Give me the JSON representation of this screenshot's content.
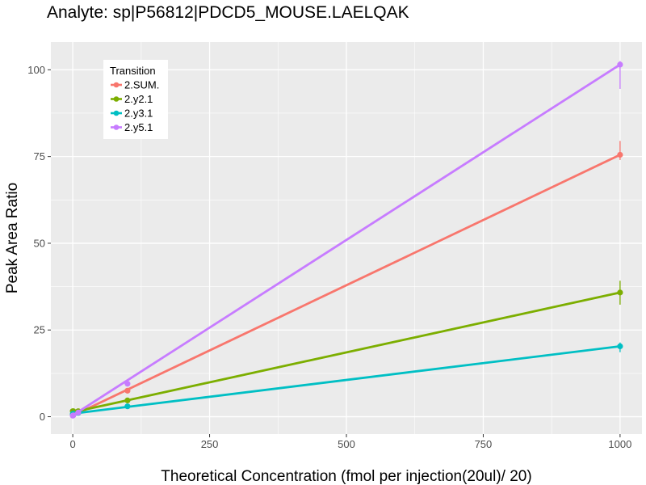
{
  "chart_data": {
    "type": "line",
    "title": "Analyte: sp|P56812|PDCD5_MOUSE.LAELQAK",
    "xlabel": "Theoretical Concentration (fmol per injection(20ul)/ 20)",
    "ylabel": "Peak Area Ratio",
    "xlim": [
      -40,
      1040
    ],
    "ylim": [
      -5,
      108
    ],
    "x_ticks": [
      0,
      250,
      500,
      750,
      1000
    ],
    "x_tick_labels": [
      "0",
      "250",
      "500",
      "750",
      "1000"
    ],
    "y_ticks": [
      0,
      25,
      50,
      75,
      100
    ],
    "y_tick_labels": [
      "0",
      "25",
      "50",
      "75",
      "100"
    ],
    "grid": true,
    "background": "#ebebeb",
    "legend": {
      "title": "Transition",
      "placement": "top-left"
    },
    "series": [
      {
        "name": "2.SUM.",
        "color": "#f8766d",
        "points": [
          {
            "x": 0,
            "y": 0.4
          },
          {
            "x": 1,
            "y": 0.5
          },
          {
            "x": 10,
            "y": 1.2
          },
          {
            "x": 100,
            "y": 7.5
          },
          {
            "x": 1000,
            "y": 75.5
          }
        ],
        "fit": [
          [
            0,
            0.3
          ],
          [
            1000,
            75.5
          ]
        ],
        "error_bars": [
          {
            "x": 1000,
            "low": 74.0,
            "high": 79.5
          }
        ]
      },
      {
        "name": "2.y2.1",
        "color": "#7cae00",
        "points": [
          {
            "x": 0,
            "y": 1.6
          },
          {
            "x": 1,
            "y": 1.6
          },
          {
            "x": 10,
            "y": 1.6
          },
          {
            "x": 100,
            "y": 4.7
          },
          {
            "x": 1000,
            "y": 35.8
          }
        ],
        "fit": [
          [
            0,
            1.3
          ],
          [
            1000,
            35.8
          ]
        ],
        "error_bars": [
          {
            "x": 1000,
            "low": 32.3,
            "high": 39.2
          }
        ]
      },
      {
        "name": "2.y3.1",
        "color": "#00bfc4",
        "points": [
          {
            "x": 0,
            "y": 0.8
          },
          {
            "x": 1,
            "y": 0.9
          },
          {
            "x": 10,
            "y": 1.1
          },
          {
            "x": 100,
            "y": 3.0
          },
          {
            "x": 1000,
            "y": 20.3
          }
        ],
        "fit": [
          [
            0,
            0.9
          ],
          [
            1000,
            20.3
          ]
        ],
        "error_bars": [
          {
            "x": 1000,
            "low": 18.6,
            "high": 21.4
          }
        ]
      },
      {
        "name": "2.y5.1",
        "color": "#c77cff",
        "points": [
          {
            "x": 0,
            "y": 0.3
          },
          {
            "x": 1,
            "y": 0.4
          },
          {
            "x": 10,
            "y": 1.2
          },
          {
            "x": 100,
            "y": 9.5
          },
          {
            "x": 1000,
            "y": 101.5
          }
        ],
        "fit": [
          [
            0,
            0.4
          ],
          [
            1000,
            101.5
          ]
        ],
        "error_bars": [
          {
            "x": 1000,
            "low": 94.5,
            "high": 102.5
          }
        ]
      }
    ]
  }
}
